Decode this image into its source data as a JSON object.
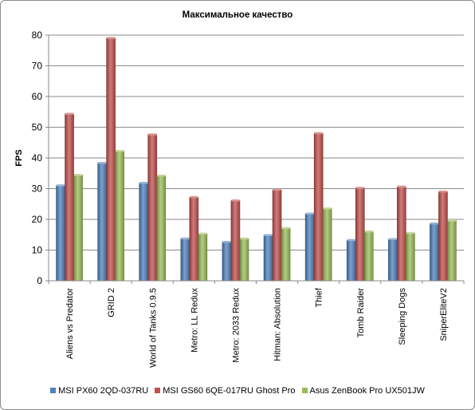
{
  "chart_data": {
    "type": "bar",
    "title": "Максимальное   качество",
    "ylabel": "FPS",
    "xlabel": "",
    "ylim": [
      0,
      80
    ],
    "yticks": [
      0,
      10,
      20,
      30,
      40,
      50,
      60,
      70,
      80
    ],
    "grid": true,
    "legend_position": "bottom",
    "categories": [
      "Aliens vs Predator",
      "GRID 2",
      "World of Tanks 0.9.5",
      "Metro: LL Redux",
      "Metro: 2033 Redux",
      "Hitman: Absolution",
      "Thief",
      "Tomb Raider",
      "Sleeping Dogs",
      "SniperEliteV2"
    ],
    "series": [
      {
        "name": "MSI PX60 2QD-037RU",
        "color": "#4f81bd",
        "values": [
          31,
          38.3,
          31.8,
          13.7,
          12.6,
          14.8,
          21.8,
          13.2,
          13.5,
          18.6
        ]
      },
      {
        "name": "MSI GS60 6QE-017RU Ghost Pro",
        "color": "#c0504d",
        "values": [
          54.3,
          79,
          47.6,
          27.2,
          26.1,
          29.6,
          48,
          30.2,
          30.6,
          29
        ]
      },
      {
        "name": "Asus ZenBook Pro UX501JW",
        "color": "#9bbb59",
        "values": [
          34.4,
          42.2,
          34.2,
          15.3,
          13.7,
          17.1,
          23.5,
          16,
          15.5,
          19.6
        ]
      }
    ]
  }
}
